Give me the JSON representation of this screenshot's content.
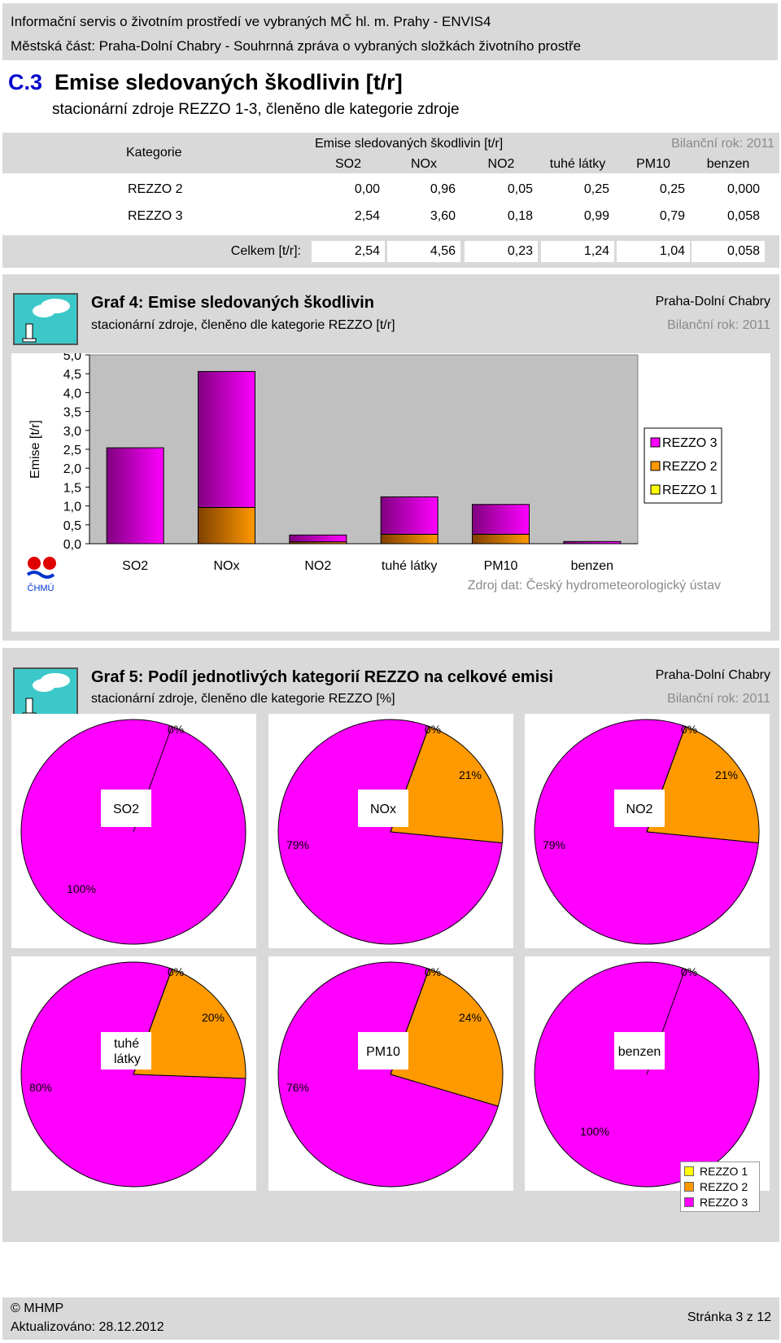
{
  "header": {
    "line1": "Informační servis o životním prostředí ve vybraných MČ hl. m. Prahy - ENVIS4",
    "line2": "Městská část: Praha-Dolní Chabry - Souhrnná zpráva o vybraných složkách životního prostře"
  },
  "section": {
    "number": "C.3",
    "title": "Emise sledovaných škodlivin [t/r]",
    "subtitle": "stacionární zdroje REZZO 1-3, členěno dle kategorie zdroje"
  },
  "table": {
    "category_header": "Kategorie",
    "group_header": "Emise sledovaných škodlivin [t/r]",
    "year_label": "Bilanční rok: 2011",
    "columns": [
      "SO2",
      "NOx",
      "NO2",
      "tuhé látky",
      "PM10",
      "benzen"
    ],
    "rows": [
      {
        "label": "REZZO 2",
        "values": [
          "0,00",
          "0,96",
          "0,05",
          "0,25",
          "0,25",
          "0,000"
        ]
      },
      {
        "label": "REZZO 3",
        "values": [
          "2,54",
          "3,60",
          "0,18",
          "0,99",
          "0,79",
          "0,058"
        ]
      }
    ],
    "total_label": "Celkem [t/r]:",
    "total_values": [
      "2,54",
      "4,56",
      "0,23",
      "1,24",
      "1,04",
      "0,058"
    ]
  },
  "graph4": {
    "title": "Graf 4: Emise sledovaných škodlivin",
    "subtitle": "stacionární zdroje, členěno dle kategorie REZZO [t/r]",
    "location": "Praha-Dolní Chabry",
    "year": "Bilanční rok: 2011",
    "source": "Zdroj dat: Český hydrometeorologický ústav",
    "logo_text": "ČHMÚ"
  },
  "graph5": {
    "title": "Graf 5: Podíl jednotlivých kategorií REZZO na celkové emisi",
    "subtitle": "stacionární zdroje, členěno dle kategorie REZZO [%]",
    "location": "Praha-Dolní Chabry",
    "year": "Bilanční rok: 2011"
  },
  "colors": {
    "rezzo1": "#ffff00",
    "rezzo2": "#ff9900",
    "rezzo3": "#ff00ff",
    "rezzo3_dark": "#800080",
    "rezzo2_dark": "#804000"
  },
  "chart_data": [
    {
      "type": "bar",
      "stacked": true,
      "categories": [
        "SO2",
        "NOx",
        "NO2",
        "tuhé látky",
        "PM10",
        "benzen"
      ],
      "series": [
        {
          "name": "REZZO 3",
          "values": [
            2.54,
            3.6,
            0.18,
            0.99,
            0.79,
            0.058
          ]
        },
        {
          "name": "REZZO 2",
          "values": [
            0.0,
            0.96,
            0.05,
            0.25,
            0.25,
            0.0
          ]
        },
        {
          "name": "REZZO 1",
          "values": [
            0,
            0,
            0,
            0,
            0,
            0
          ]
        }
      ],
      "ylabel": "Emise [t/r]",
      "ylim": [
        0,
        5
      ],
      "yticks": [
        "0,0",
        "0,5",
        "1,0",
        "1,5",
        "2,0",
        "2,5",
        "3,0",
        "3,5",
        "4,0",
        "4,5",
        "5,0"
      ],
      "legend": [
        "REZZO 3",
        "REZZO 2",
        "REZZO 1"
      ],
      "legend_position": "right"
    },
    {
      "type": "pie",
      "pies": [
        {
          "name": "SO2",
          "slices": [
            {
              "series": "REZZO 1",
              "value": 0,
              "label": "0%"
            },
            {
              "series": "REZZO 2",
              "value": 0,
              "label": ""
            },
            {
              "series": "REZZO 3",
              "value": 100,
              "label": "100%"
            }
          ]
        },
        {
          "name": "NOx",
          "slices": [
            {
              "series": "REZZO 1",
              "value": 0,
              "label": "0%"
            },
            {
              "series": "REZZO 2",
              "value": 21,
              "label": "21%"
            },
            {
              "series": "REZZO 3",
              "value": 79,
              "label": "79%"
            }
          ]
        },
        {
          "name": "NO2",
          "slices": [
            {
              "series": "REZZO 1",
              "value": 0,
              "label": "0%"
            },
            {
              "series": "REZZO 2",
              "value": 21,
              "label": "21%"
            },
            {
              "series": "REZZO 3",
              "value": 79,
              "label": "79%"
            }
          ]
        },
        {
          "name": "tuhé látky",
          "slices": [
            {
              "series": "REZZO 1",
              "value": 0,
              "label": "0%"
            },
            {
              "series": "REZZO 2",
              "value": 20,
              "label": "20%"
            },
            {
              "series": "REZZO 3",
              "value": 80,
              "label": "80%"
            }
          ]
        },
        {
          "name": "PM10",
          "slices": [
            {
              "series": "REZZO 1",
              "value": 0,
              "label": "0%"
            },
            {
              "series": "REZZO 2",
              "value": 24,
              "label": "24%"
            },
            {
              "series": "REZZO 3",
              "value": 76,
              "label": "76%"
            }
          ]
        },
        {
          "name": "benzen",
          "slices": [
            {
              "series": "REZZO 1",
              "value": 0,
              "label": "0%"
            },
            {
              "series": "REZZO 2",
              "value": 0,
              "label": ""
            },
            {
              "series": "REZZO 3",
              "value": 100,
              "label": "100%"
            }
          ]
        }
      ],
      "legend": [
        "REZZO 1",
        "REZZO 2",
        "REZZO 3"
      ],
      "legend_position": "bottom-right"
    }
  ],
  "footer": {
    "copyright": "© MHMP",
    "updated": "Aktualizováno: 28.12.2012",
    "page": "Stránka 3 z 12"
  }
}
